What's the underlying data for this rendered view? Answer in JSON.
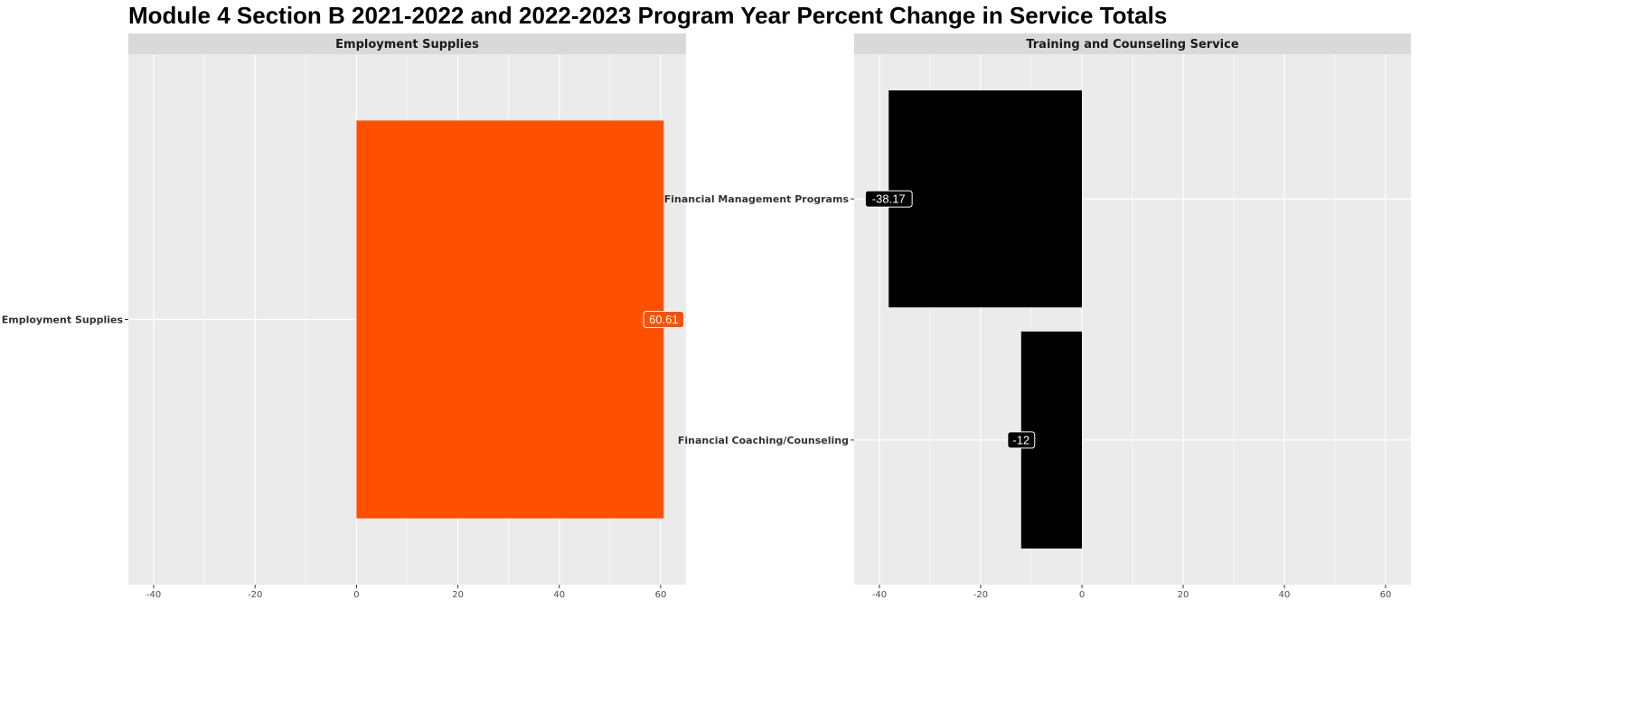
{
  "title": "Module 4 Section B 2021-2022 and 2022-2023 Program Year Percent Change in Service Totals",
  "chart_data": [
    {
      "type": "bar",
      "orientation": "horizontal",
      "facet_title": "Employment Supplies",
      "categories": [
        "Employment Supplies"
      ],
      "values": [
        60.61
      ],
      "data_labels": [
        "60.61"
      ],
      "bar_color": "#FF5000",
      "xlim": [
        -45,
        65
      ],
      "x_ticks": [
        -40,
        -20,
        0,
        20,
        40,
        60
      ],
      "x_tick_labels": [
        "-40",
        "-20",
        "0",
        "20",
        "40",
        "60"
      ],
      "xlabel": "",
      "ylabel": "",
      "grid": true
    },
    {
      "type": "bar",
      "orientation": "horizontal",
      "facet_title": "Training and Counseling Service",
      "categories": [
        "Financial Management Programs",
        "Financial Coaching/Counseling"
      ],
      "values": [
        -38.17,
        -12
      ],
      "data_labels": [
        "-38.17",
        "-12"
      ],
      "bar_color": "#000000",
      "xlim": [
        -45,
        65
      ],
      "x_ticks": [
        -40,
        -20,
        0,
        20,
        40,
        60
      ],
      "x_tick_labels": [
        "-40",
        "-20",
        "0",
        "20",
        "40",
        "60"
      ],
      "xlabel": "",
      "ylabel": "",
      "grid": true
    }
  ]
}
